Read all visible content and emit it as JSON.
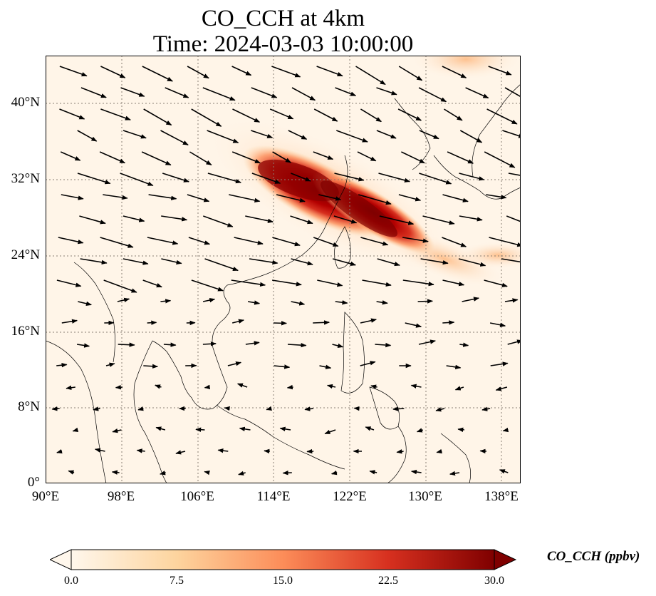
{
  "title": {
    "line1": "CO_CCH at 4km",
    "line2": "Time: 2024-03-03 10:00:00"
  },
  "map": {
    "projection": "PlateCarree",
    "lon_range": [
      90,
      140
    ],
    "lat_range": [
      0,
      45
    ],
    "gridlines": "dotted",
    "lat_labels": [
      "40°N",
      "32°N",
      "24°N",
      "16°N",
      "8°N",
      "0°"
    ],
    "lon_labels": [
      "90°E",
      "98°E",
      "106°E",
      "114°E",
      "122°E",
      "130°E",
      "138°E"
    ],
    "wind_vectors": "black arrows",
    "plume": "CO_CCH concentration plume from eastern China over East China Sea toward Japan"
  },
  "colorbar": {
    "label": "CO_CCH (ppbv)",
    "ticks": [
      "0.0",
      "7.5",
      "15.0",
      "22.5",
      "30.0"
    ],
    "range": [
      0,
      30
    ],
    "colormap": "OrRd",
    "extend": "both",
    "colors": [
      "#fff7ec",
      "#fdd49e",
      "#fc8d59",
      "#d7301f",
      "#7f0000"
    ]
  }
}
